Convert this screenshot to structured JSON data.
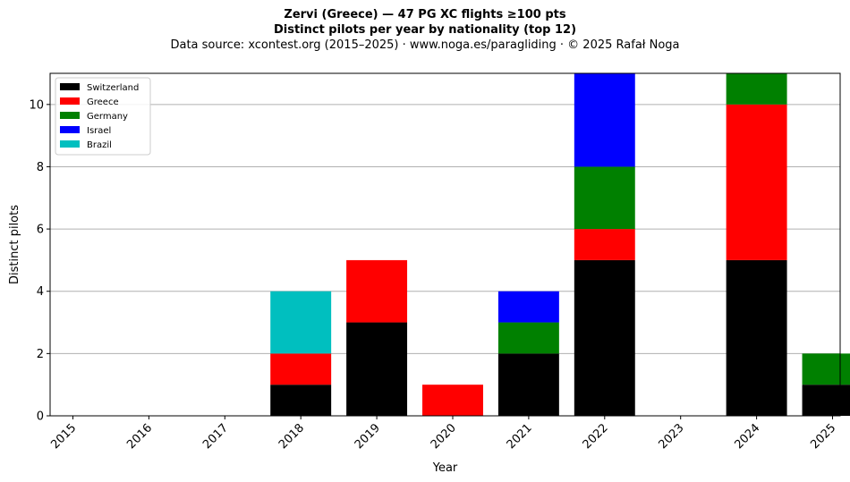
{
  "title_line1": "Zervi (Greece)  —  47 PG XC flights ≥100 pts",
  "title_line2": "Distinct pilots per year by nationality (top 12)",
  "subtitle": "Data source: xcontest.org (2015–2025)  ·  www.noga.es/paragliding  ·  © 2025 Rafał Noga",
  "chart_data": {
    "type": "bar",
    "stacked": true,
    "categories": [
      "2015",
      "2016",
      "2017",
      "2018",
      "2019",
      "2020",
      "2021",
      "2022",
      "2023",
      "2024",
      "2025"
    ],
    "series": [
      {
        "name": "Switzerland",
        "color": "#000000",
        "values": [
          0,
          0,
          0,
          1,
          3,
          0,
          2,
          5,
          0,
          5,
          1
        ]
      },
      {
        "name": "Greece",
        "color": "#ff0000",
        "values": [
          0,
          0,
          0,
          1,
          2,
          1,
          0,
          1,
          0,
          5,
          0
        ]
      },
      {
        "name": "Germany",
        "color": "#008000",
        "values": [
          0,
          0,
          0,
          0,
          0,
          0,
          1,
          2,
          0,
          1,
          1
        ]
      },
      {
        "name": "Israel",
        "color": "#0000ff",
        "values": [
          0,
          0,
          0,
          0,
          0,
          0,
          1,
          3,
          0,
          0,
          0
        ]
      },
      {
        "name": "Brazil",
        "color": "#00bfbf",
        "values": [
          0,
          0,
          0,
          2,
          0,
          0,
          0,
          0,
          0,
          0,
          0
        ]
      }
    ],
    "xlabel": "Year",
    "ylabel": "Distinct pilots",
    "ylim": [
      0,
      11
    ],
    "yticks": [
      0,
      2,
      4,
      6,
      8,
      10
    ],
    "grid": "y",
    "legend_position": "top-left"
  }
}
